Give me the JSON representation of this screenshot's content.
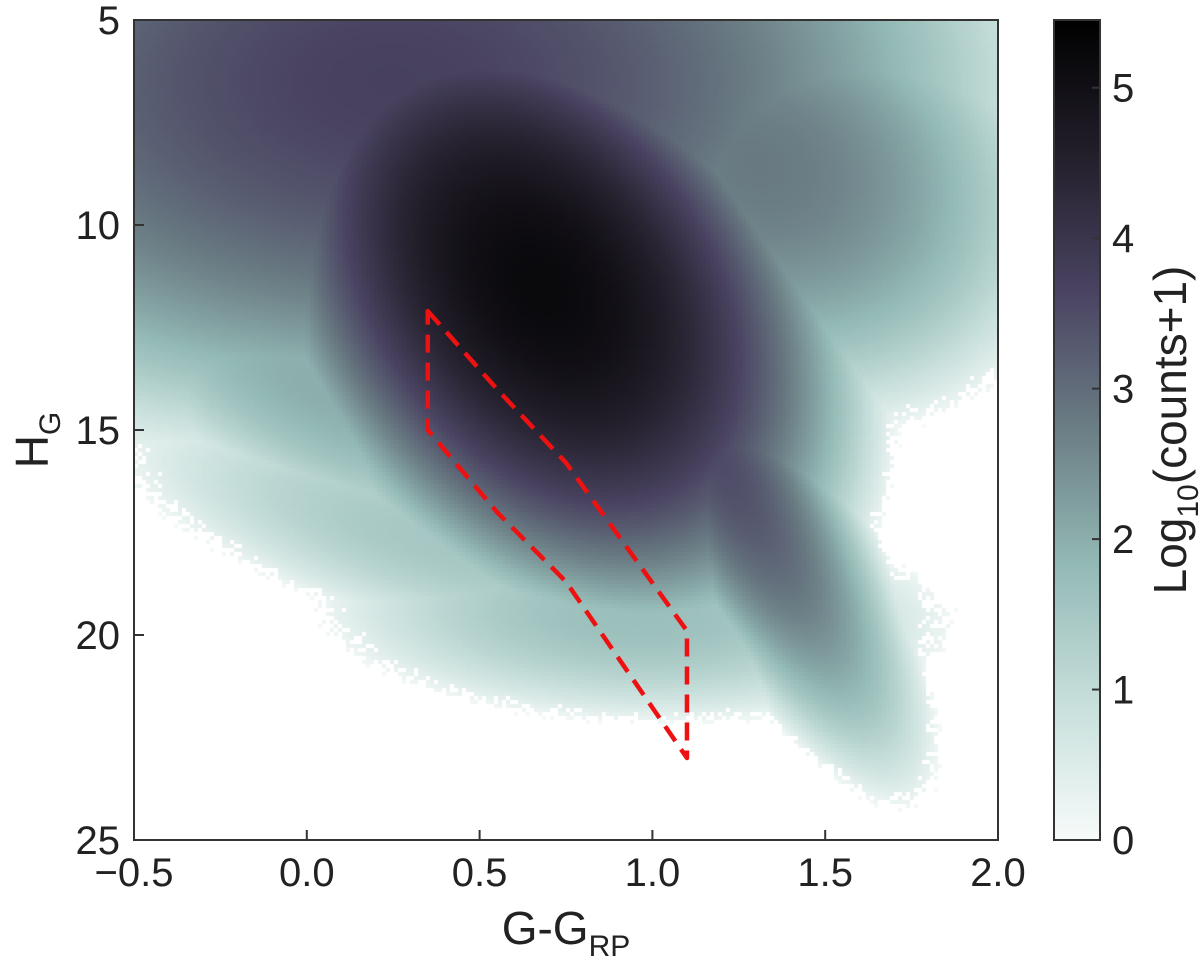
{
  "chart_data": {
    "type": "heatmap",
    "title": "",
    "xlabel": {
      "main": "G-G",
      "sub": "RP"
    },
    "ylabel": {
      "main": "H",
      "sub": "G"
    },
    "xlim": [
      -0.5,
      2.0
    ],
    "ylim": [
      25,
      5
    ],
    "y_inverted": true,
    "x_ticks": [
      -0.5,
      0.0,
      0.5,
      1.0,
      1.5,
      2.0
    ],
    "x_tick_labels": [
      "−0.5",
      "0.0",
      "0.5",
      "1.0",
      "1.5",
      "2.0"
    ],
    "y_ticks": [
      5,
      10,
      15,
      20,
      25
    ],
    "y_tick_labels": [
      "5",
      "10",
      "15",
      "20",
      "25"
    ],
    "grid": false,
    "colorbar": {
      "label": {
        "main": "Log",
        "sub": "10",
        "rest": "(counts+1)"
      },
      "range": [
        0,
        5.45
      ],
      "ticks": [
        0,
        1,
        2,
        3,
        4,
        5
      ],
      "tick_labels": [
        "0",
        "1",
        "2",
        "3",
        "4",
        "5"
      ],
      "colormap": [
        "#f7fbfa",
        "#c7dfdb",
        "#94bab6",
        "#6b7e85",
        "#4a4462",
        "#231f2b",
        "#000000"
      ]
    },
    "density_components": [
      {
        "x": 0.68,
        "y": 11.5,
        "sx": 0.28,
        "sy": 2.6,
        "rho": 0.35,
        "w": 5.2
      },
      {
        "x": 0.25,
        "y": 6.5,
        "sx": 0.65,
        "sy": 3.2,
        "rho": 0.0,
        "w": 3.7
      },
      {
        "x": 1.1,
        "y": 14.5,
        "sx": 0.24,
        "sy": 3.2,
        "rho": 0.85,
        "w": 3.6
      },
      {
        "x": 0.05,
        "y": 14.0,
        "sx": 0.42,
        "sy": 2.2,
        "rho": 0.72,
        "w": 2.0
      },
      {
        "x": 0.95,
        "y": 19.5,
        "sx": 0.45,
        "sy": 1.3,
        "rho": 0.1,
        "w": 1.7
      },
      {
        "x": 0.4,
        "y": 17.8,
        "sx": 0.5,
        "sy": 1.8,
        "rho": 0.7,
        "w": 1.5
      },
      {
        "x": 1.3,
        "y": 8.5,
        "sx": 0.35,
        "sy": 2.5,
        "rho": 0.2,
        "w": 2.8
      }
    ],
    "selection_region": {
      "style": "dashed",
      "color": "#ee1111",
      "vertices": [
        [
          0.35,
          12.1
        ],
        [
          0.55,
          14.0
        ],
        [
          0.75,
          15.8
        ],
        [
          1.1,
          19.9
        ],
        [
          1.1,
          23.0
        ],
        [
          0.75,
          18.7
        ],
        [
          0.55,
          17.0
        ],
        [
          0.35,
          15.0
        ]
      ]
    }
  }
}
